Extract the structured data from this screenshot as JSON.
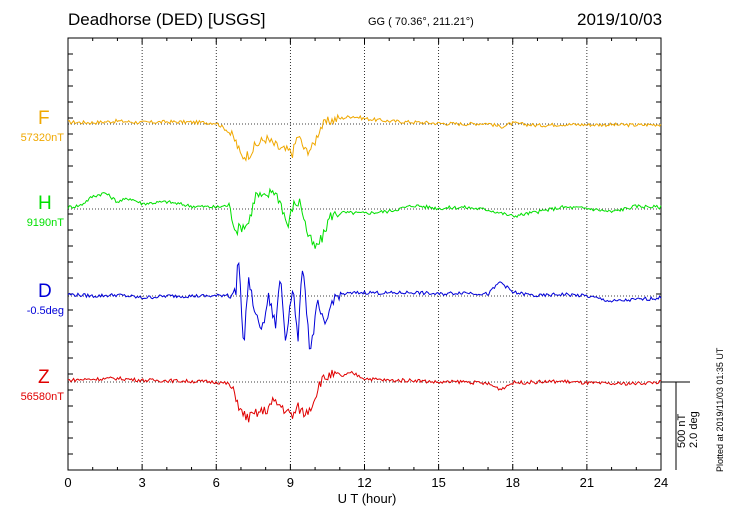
{
  "header": {
    "title": "Deadhorse (DED)  [USGS]",
    "coords": "GG ( 70.36°, 211.21°)",
    "date": "2019/10/03"
  },
  "footer": {
    "scale_line1": "500 nT",
    "scale_line2": "2.0 deg",
    "plotted": "Plotted at 2019/11/03 01:35 UT"
  },
  "chart_data": {
    "type": "line",
    "title": "Deadhorse (DED)  [USGS]",
    "xlabel": "U T (hour)",
    "ylabel": "",
    "xlim": [
      0,
      24
    ],
    "xticks": [
      "0",
      "3",
      "6",
      "9",
      "12",
      "15",
      "18",
      "21",
      "24"
    ],
    "grid": "dotted vertical every 3 h",
    "scale": "500 nT / 2.0 deg per bar",
    "series": [
      {
        "name": "F",
        "baseline": "57320nT",
        "color": "#f0a800",
        "x": [
          0,
          1,
          2,
          3,
          4,
          5,
          6,
          6.5,
          6.8,
          7,
          7.3,
          7.6,
          8,
          8.3,
          8.6,
          8.9,
          9.1,
          9.3,
          9.6,
          9.9,
          10.2,
          10.6,
          11,
          11.5,
          12,
          13,
          14,
          15,
          16,
          17,
          17.5,
          18,
          19,
          20,
          21,
          22,
          23,
          24
        ],
        "values": [
          5,
          4,
          8,
          4,
          6,
          5,
          3,
          -20,
          -50,
          -90,
          -85,
          -60,
          -40,
          -55,
          -70,
          -75,
          -80,
          -30,
          -75,
          -65,
          -10,
          10,
          15,
          22,
          15,
          8,
          5,
          2,
          0,
          2,
          -8,
          2,
          -4,
          -1,
          -2,
          -2,
          -3,
          -1
        ]
      },
      {
        "name": "H",
        "baseline": "9190nT",
        "color": "#00e000",
        "x": [
          0,
          0.5,
          1,
          1.5,
          2,
          2.5,
          3,
          4,
          5,
          6,
          6.5,
          6.8,
          7,
          7.3,
          7.6,
          8,
          8.3,
          8.6,
          8.9,
          9.1,
          9.4,
          9.7,
          10,
          10.3,
          10.6,
          11,
          12,
          13,
          14,
          15,
          16,
          17,
          18,
          19,
          20,
          21,
          22,
          23,
          24
        ],
        "values": [
          5,
          10,
          35,
          45,
          20,
          30,
          15,
          20,
          8,
          5,
          10,
          -60,
          -50,
          -40,
          40,
          30,
          55,
          20,
          -50,
          10,
          20,
          -70,
          -110,
          -80,
          -20,
          -10,
          -12,
          -6,
          10,
          2,
          5,
          -2,
          -20,
          -8,
          5,
          2,
          -8,
          8,
          5
        ]
      },
      {
        "name": "D",
        "baseline": "-0.5deg",
        "color": "#0000d8",
        "x": [
          0,
          1,
          2,
          3,
          4,
          5,
          6,
          6.5,
          6.8,
          6.9,
          7.1,
          7.3,
          7.6,
          7.9,
          8.1,
          8.4,
          8.6,
          8.8,
          9.1,
          9.3,
          9.5,
          9.8,
          10.1,
          10.4,
          10.7,
          11,
          12,
          13,
          14,
          15,
          16,
          17,
          17.5,
          18,
          19,
          20,
          21,
          22,
          23,
          24
        ],
        "values": [
          5,
          0,
          3,
          -5,
          0,
          0,
          0,
          5,
          10,
          125,
          -150,
          50,
          -60,
          -90,
          0,
          -80,
          60,
          -120,
          30,
          -130,
          100,
          -160,
          -20,
          -90,
          -10,
          5,
          10,
          8,
          10,
          5,
          10,
          5,
          40,
          10,
          0,
          5,
          0,
          -15,
          -10,
          -5
        ]
      },
      {
        "name": "Z",
        "baseline": "56580nT",
        "color": "#e00000",
        "x": [
          0,
          1,
          2,
          3,
          4,
          5,
          6,
          6.5,
          6.8,
          7,
          7.3,
          7.7,
          8,
          8.3,
          8.6,
          8.9,
          9.1,
          9.3,
          9.6,
          9.9,
          10.2,
          10.6,
          11,
          11.5,
          12,
          13,
          14,
          15,
          16,
          17,
          17.5,
          18,
          19,
          20,
          21,
          22,
          23,
          24
        ],
        "values": [
          5,
          8,
          10,
          5,
          4,
          2,
          0,
          -5,
          -40,
          -85,
          -100,
          -85,
          -80,
          -55,
          -65,
          -85,
          -95,
          -70,
          -90,
          -60,
          0,
          20,
          15,
          25,
          10,
          4,
          5,
          -1,
          1,
          -5,
          -20,
          -2,
          0,
          2,
          -3,
          -5,
          -4,
          0
        ]
      }
    ]
  }
}
